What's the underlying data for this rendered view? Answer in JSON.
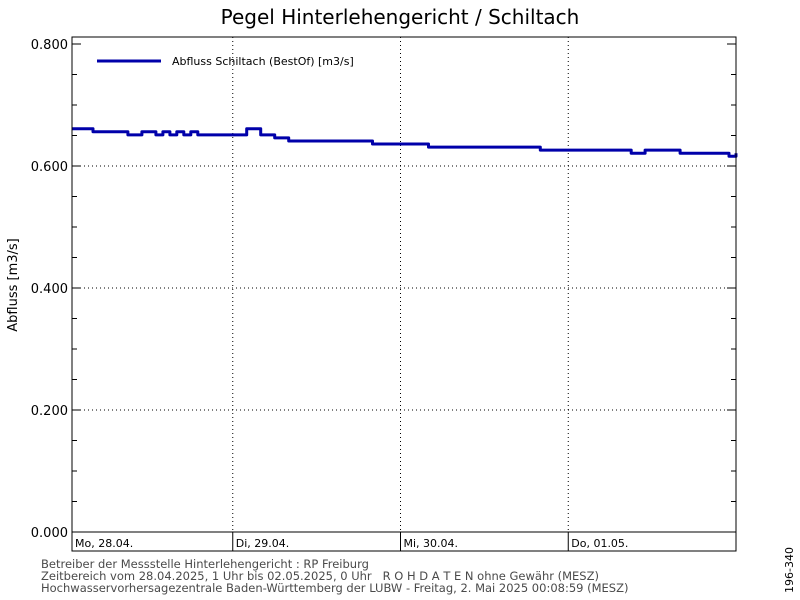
{
  "chart_data": {
    "type": "line",
    "title": "Pegel Hinterlehengericht / Schiltach",
    "ylabel": "Abfluss [m3/s]",
    "xlabel": "",
    "ylim": [
      0.0,
      0.8
    ],
    "xlim": [
      "2025-04-28T01:00",
      "2025-05-02T00:00"
    ],
    "y_ticks": [
      "0.000",
      "0.200",
      "0.400",
      "0.600",
      "0.800"
    ],
    "x_day_labels": [
      "Mo, 28.04.",
      "Di, 29.04.",
      "Mi, 30.04.",
      "Do, 01.05."
    ],
    "grid": true,
    "legend_position": "top-left",
    "series": [
      {
        "name": "Abfluss Schiltach (BestOf)  [m3/s]",
        "color": "#0000aa",
        "x": [
          "2025-04-28T01:00",
          "2025-04-28T03:00",
          "2025-04-28T04:00",
          "2025-04-28T06:00",
          "2025-04-28T08:00",
          "2025-04-28T09:00",
          "2025-04-28T11:00",
          "2025-04-28T12:00",
          "2025-04-28T13:00",
          "2025-04-28T14:00",
          "2025-04-28T15:00",
          "2025-04-28T16:00",
          "2025-04-28T17:00",
          "2025-04-28T18:00",
          "2025-04-28T19:00",
          "2025-04-28T21:00",
          "2025-04-28T22:00",
          "2025-04-28T23:00",
          "2025-04-29T00:00",
          "2025-04-29T02:00",
          "2025-04-29T04:00",
          "2025-04-29T06:00",
          "2025-04-29T08:00",
          "2025-04-29T11:00",
          "2025-04-29T14:00",
          "2025-04-29T17:00",
          "2025-04-29T20:00",
          "2025-04-30T00:00",
          "2025-04-30T04:00",
          "2025-04-30T08:00",
          "2025-04-30T12:00",
          "2025-04-30T16:00",
          "2025-04-30T20:00",
          "2025-05-01T00:00",
          "2025-05-01T04:00",
          "2025-05-01T08:00",
          "2025-05-01T09:00",
          "2025-05-01T11:00",
          "2025-05-01T12:00",
          "2025-05-01T14:00",
          "2025-05-01T16:00",
          "2025-05-01T18:00",
          "2025-05-01T20:00",
          "2025-05-01T22:00",
          "2025-05-01T23:00",
          "2025-05-02T00:00"
        ],
        "values": [
          0.661,
          0.661,
          0.656,
          0.656,
          0.656,
          0.651,
          0.656,
          0.656,
          0.651,
          0.656,
          0.651,
          0.656,
          0.651,
          0.656,
          0.651,
          0.651,
          0.651,
          0.651,
          0.651,
          0.661,
          0.651,
          0.646,
          0.641,
          0.641,
          0.641,
          0.641,
          0.636,
          0.636,
          0.631,
          0.631,
          0.631,
          0.631,
          0.626,
          0.626,
          0.626,
          0.626,
          0.621,
          0.626,
          0.626,
          0.626,
          0.621,
          0.621,
          0.621,
          0.621,
          0.616,
          0.621
        ]
      }
    ]
  },
  "footer": {
    "line1": "Betreiber der Messstelle Hinterlehengericht : RP Freiburg",
    "line2": "Zeitbereich vom 28.04.2025, 1 Uhr bis 02.05.2025, 0 Uhr   R O H D A T E N ohne Gewähr (MESZ)",
    "line3": "Hochwasservorhersagezentrale Baden-Württemberg der LUBW - Freitag, 2. Mai 2025 00:08:59 (MESZ)"
  },
  "side_code": "196-340"
}
